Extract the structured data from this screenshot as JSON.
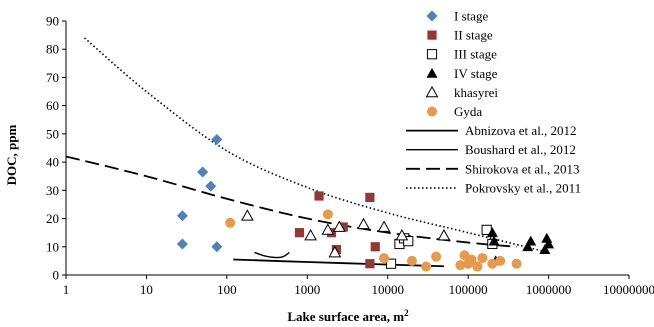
{
  "chart_data": {
    "type": "scatter",
    "xlabel": "Lake surface area, m",
    "xlabel_sup": "2",
    "ylabel": "DOC, ppm",
    "xscale": "log",
    "xlim": [
      1,
      10000000
    ],
    "ylim": [
      0,
      90
    ],
    "x_ticks": [
      {
        "value": 1,
        "label": "1"
      },
      {
        "value": 10,
        "label": "10"
      },
      {
        "value": 100,
        "label": "100"
      },
      {
        "value": 1000,
        "label": "1000"
      },
      {
        "value": 10000,
        "label": "10000"
      },
      {
        "value": 100000,
        "label": "100000"
      },
      {
        "value": 1000000,
        "label": "1000000"
      },
      {
        "value": 10000000,
        "label": "10000000"
      }
    ],
    "y_ticks": [
      {
        "value": 0,
        "label": "0"
      },
      {
        "value": 10,
        "label": "10"
      },
      {
        "value": 20,
        "label": "20"
      },
      {
        "value": 30,
        "label": "30"
      },
      {
        "value": 40,
        "label": "40"
      },
      {
        "value": 50,
        "label": "50"
      },
      {
        "value": 60,
        "label": "60"
      },
      {
        "value": 70,
        "label": "70"
      },
      {
        "value": 80,
        "label": "80"
      },
      {
        "value": 90,
        "label": "90"
      }
    ],
    "grid": false,
    "legend_position": "top-right",
    "series": [
      {
        "name": "I stage",
        "marker": "diamond",
        "color": "#4F81BD",
        "points": [
          [
            28,
            21
          ],
          [
            28,
            11
          ],
          [
            50,
            36.5
          ],
          [
            63,
            31.5
          ],
          [
            75,
            48
          ],
          [
            75,
            10
          ]
        ]
      },
      {
        "name": "II stage",
        "marker": "square",
        "color": "#953735",
        "points": [
          [
            800,
            15
          ],
          [
            1400,
            28
          ],
          [
            2000,
            15
          ],
          [
            2300,
            9
          ],
          [
            2800,
            17
          ],
          [
            6000,
            27.5
          ],
          [
            6000,
            4
          ],
          [
            7000,
            10
          ]
        ]
      },
      {
        "name": "III stage",
        "marker": "square-open",
        "color": "#000000",
        "points": [
          [
            11000,
            4
          ],
          [
            14000,
            11
          ],
          [
            16000,
            13
          ],
          [
            18000,
            12
          ],
          [
            170000,
            16
          ],
          [
            200000,
            11
          ]
        ]
      },
      {
        "name": "IV stage",
        "marker": "triangle",
        "color": "#000000",
        "points": [
          [
            200000,
            15
          ],
          [
            210000,
            12
          ],
          [
            220000,
            5
          ],
          [
            550000,
            10
          ],
          [
            600000,
            12
          ],
          [
            900000,
            9
          ],
          [
            950000,
            13
          ],
          [
            1000000,
            11
          ]
        ]
      },
      {
        "name": "khasyrei",
        "marker": "triangle-open",
        "color": "#000000",
        "points": [
          [
            180,
            21
          ],
          [
            1100,
            14
          ],
          [
            1800,
            16
          ],
          [
            2200,
            8
          ],
          [
            2500,
            17
          ],
          [
            5000,
            18
          ],
          [
            9000,
            17
          ],
          [
            15000,
            14
          ],
          [
            50000,
            14
          ]
        ]
      },
      {
        "name": "Gyda",
        "marker": "circle",
        "color": "#E79A4A",
        "points": [
          [
            110,
            18.5
          ],
          [
            1800,
            21.5
          ],
          [
            9000,
            6
          ],
          [
            20000,
            5
          ],
          [
            30000,
            3
          ],
          [
            40000,
            6.5
          ],
          [
            80000,
            3.5
          ],
          [
            90000,
            7
          ],
          [
            100000,
            4
          ],
          [
            110000,
            5.5
          ],
          [
            130000,
            3
          ],
          [
            150000,
            6
          ],
          [
            200000,
            4
          ],
          [
            250000,
            5
          ],
          [
            400000,
            4
          ]
        ]
      }
    ],
    "lines": [
      {
        "name": "Abnizova et al., 2012",
        "style": "solid",
        "points": [
          [
            120,
            5.5
          ],
          [
            1000,
            4.6
          ],
          [
            10000,
            3.7
          ],
          [
            50000,
            3.1
          ]
        ]
      },
      {
        "name": "Boushard et al., 2012",
        "style": "solid-thin",
        "points": [
          [
            220,
            8
          ],
          [
            300,
            6.7
          ],
          [
            400,
            6.2
          ],
          [
            500,
            6.5
          ],
          [
            600,
            8
          ]
        ]
      },
      {
        "name": "Shirokova et al., 2013",
        "style": "longdash",
        "points": [
          [
            1,
            42
          ],
          [
            10,
            35
          ],
          [
            100,
            27
          ],
          [
            1000,
            20
          ],
          [
            10000,
            15
          ],
          [
            100000,
            11.5
          ],
          [
            400000,
            10
          ]
        ]
      },
      {
        "name": "Pokrovsky et al., 2011",
        "style": "dotted",
        "points": [
          [
            1.7,
            84
          ],
          [
            10,
            65
          ],
          [
            100,
            44
          ],
          [
            1000,
            31
          ],
          [
            10000,
            22
          ],
          [
            100000,
            15
          ],
          [
            1000000,
            8
          ]
        ]
      }
    ]
  }
}
